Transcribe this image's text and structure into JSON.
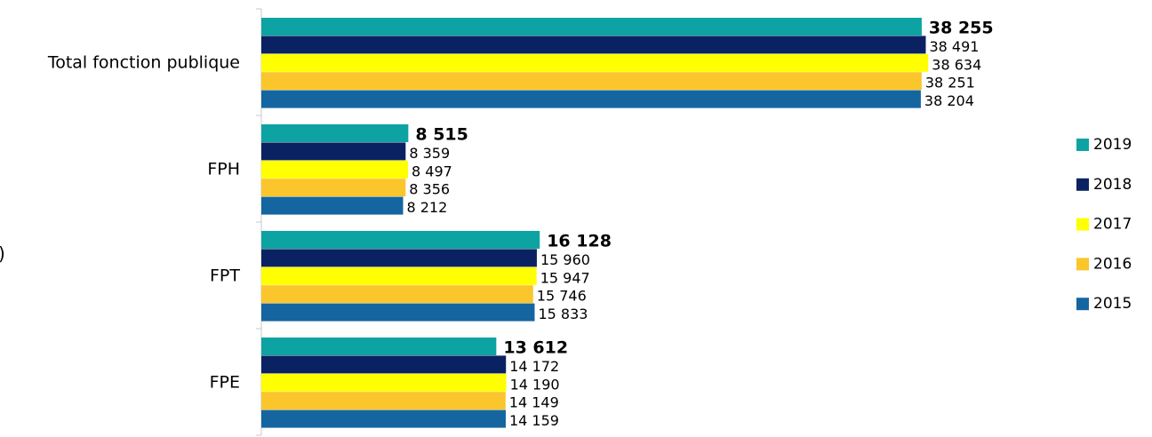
{
  "chart_data": {
    "type": "bar",
    "orientation": "horizontal",
    "ylabel": ")",
    "categories": [
      "Total fonction publique",
      "FPH",
      "FPT",
      "FPE"
    ],
    "series": [
      {
        "name": "2019",
        "color": "#0da3a3",
        "values": [
          38255,
          8515,
          16128,
          13612
        ],
        "value_labels": [
          "38 255",
          "8 515",
          "16 128",
          "13 612"
        ]
      },
      {
        "name": "2018",
        "color": "#0b2262",
        "values": [
          38491,
          8359,
          15960,
          14172
        ],
        "value_labels": [
          "38 491",
          "8 359",
          "15 960",
          "14 172"
        ]
      },
      {
        "name": "2017",
        "color": "#ffff00",
        "values": [
          38634,
          8497,
          15947,
          14190
        ],
        "value_labels": [
          "38 634",
          "8 497",
          "15 947",
          "14 190"
        ]
      },
      {
        "name": "2016",
        "color": "#fbc52c",
        "values": [
          38251,
          8356,
          15746,
          14149
        ],
        "value_labels": [
          "38 251",
          "8 356",
          "15 746",
          "14 149"
        ]
      },
      {
        "name": "2015",
        "color": "#1565a1",
        "values": [
          38204,
          8212,
          15833,
          14159
        ],
        "value_labels": [
          "38 204",
          "8 212",
          "15 833",
          "14 159"
        ]
      }
    ],
    "xlim": [
      0,
      50000
    ],
    "legend": "right"
  }
}
